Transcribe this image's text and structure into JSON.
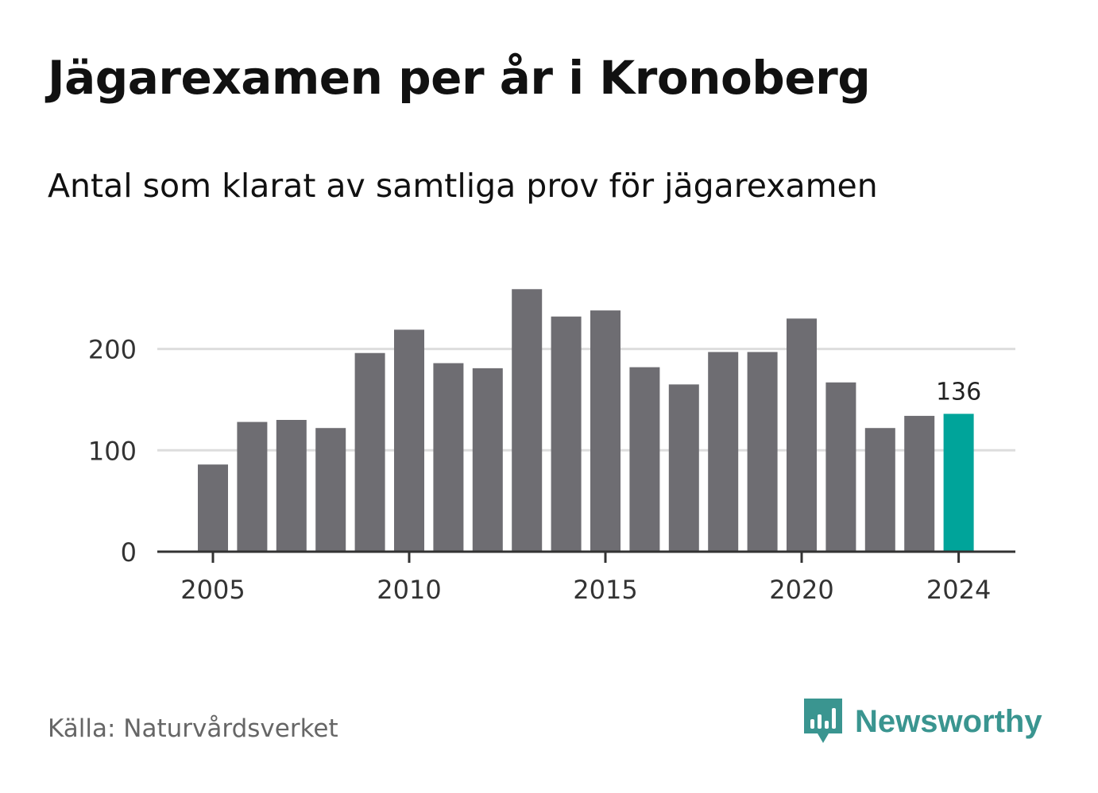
{
  "title": "Jägarexamen per år i Kronoberg",
  "subtitle": "Antal som klarat av samtliga prov för jägarexamen",
  "source": "Källa: Naturvårdsverket",
  "brand": {
    "name": "Newsworthy",
    "icon": "newsworthy-logo-icon",
    "color": "#3a9590"
  },
  "colors": {
    "bar": "#6e6d72",
    "highlight": "#00a49a",
    "grid": "#dddddd",
    "axis": "#333333",
    "text": "#333333"
  },
  "chart_data": {
    "type": "bar",
    "x": [
      2005,
      2006,
      2007,
      2008,
      2009,
      2010,
      2011,
      2012,
      2013,
      2014,
      2015,
      2016,
      2017,
      2018,
      2019,
      2020,
      2021,
      2022,
      2023,
      2024
    ],
    "values": [
      86,
      128,
      130,
      122,
      196,
      219,
      186,
      181,
      259,
      232,
      238,
      182,
      165,
      197,
      197,
      230,
      167,
      122,
      134,
      136
    ],
    "highlight": 2024,
    "highlight_label": "136",
    "xticks": [
      "2005",
      "2010",
      "2015",
      "2020",
      "2024"
    ],
    "yticks": [
      "0",
      "100",
      "200"
    ],
    "ylim": [
      0,
      260
    ],
    "grid": true
  }
}
